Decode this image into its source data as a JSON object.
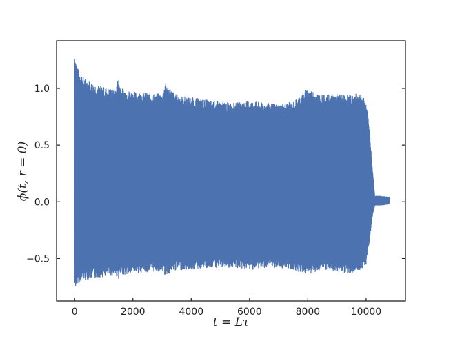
{
  "chart_data": {
    "type": "line",
    "title": "",
    "xlabel": "t = Lτ",
    "ylabel": "ϕ(t, r = 0)",
    "xlim": [
      -620,
      11350
    ],
    "ylim": [
      -0.875,
      1.42
    ],
    "x_ticks": [
      0,
      2000,
      4000,
      6000,
      8000,
      10000
    ],
    "x_tick_labels": [
      "0",
      "2000",
      "4000",
      "6000",
      "8000",
      "10000"
    ],
    "y_ticks": [
      -0.5,
      0.0,
      0.5,
      1.0
    ],
    "y_tick_labels": [
      "−0.5",
      "0.0",
      "0.5",
      "1.0"
    ],
    "grid": false,
    "legend": "none",
    "line_color": "#4c72b0",
    "series": [
      {
        "description_type": "oscillation_envelope",
        "x": [
          0,
          100,
          300,
          600,
          1000,
          1400,
          1500,
          1600,
          2000,
          2500,
          3000,
          3100,
          3500,
          4000,
          4500,
          5000,
          5500,
          6000,
          6500,
          7000,
          7500,
          8000,
          8500,
          9000,
          9500,
          9800,
          10000,
          10100,
          10200,
          10300,
          10500,
          10800
        ],
        "upper": [
          1.32,
          1.18,
          1.1,
          1.05,
          1.01,
          0.99,
          1.1,
          1.0,
          0.97,
          0.96,
          0.95,
          1.05,
          0.94,
          0.92,
          0.9,
          0.88,
          0.87,
          0.89,
          0.87,
          0.86,
          0.88,
          1.0,
          0.94,
          0.95,
          0.94,
          0.96,
          0.88,
          0.7,
          0.35,
          0.05,
          0.05,
          0.04
        ],
        "lower": [
          -0.77,
          -0.72,
          -0.69,
          -0.68,
          -0.66,
          -0.65,
          -0.68,
          -0.65,
          -0.63,
          -0.62,
          -0.61,
          -0.65,
          -0.6,
          -0.6,
          -0.59,
          -0.58,
          -0.58,
          -0.6,
          -0.58,
          -0.58,
          -0.6,
          -0.64,
          -0.6,
          -0.62,
          -0.63,
          -0.6,
          -0.55,
          -0.4,
          -0.15,
          -0.03,
          -0.03,
          -0.02
        ]
      }
    ]
  }
}
